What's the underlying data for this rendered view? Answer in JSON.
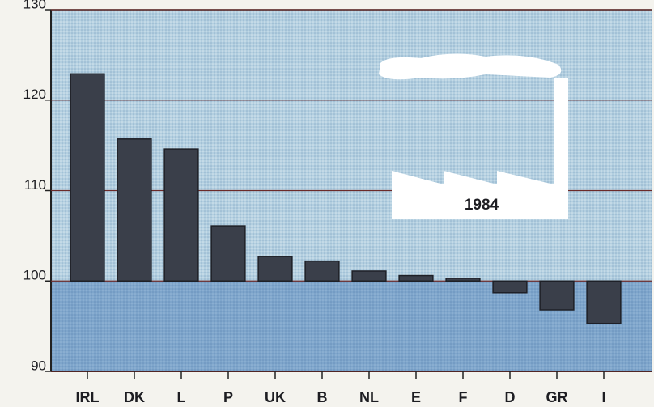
{
  "chart_data": {
    "type": "bar",
    "categories": [
      "IRL",
      "DK",
      "L",
      "P",
      "UK",
      "B",
      "NL",
      "E",
      "F",
      "D",
      "GR",
      "I"
    ],
    "values": [
      122.9,
      115.7,
      114.6,
      106.1,
      102.7,
      102.2,
      101.1,
      100.6,
      100.3,
      98.7,
      96.8,
      95.3
    ],
    "baseline": 100,
    "color": "#3a3f4a",
    "ylim": [
      90,
      130
    ],
    "yticks": [
      90,
      100,
      110,
      120,
      130
    ],
    "grid": true,
    "annotation": "1984"
  }
}
